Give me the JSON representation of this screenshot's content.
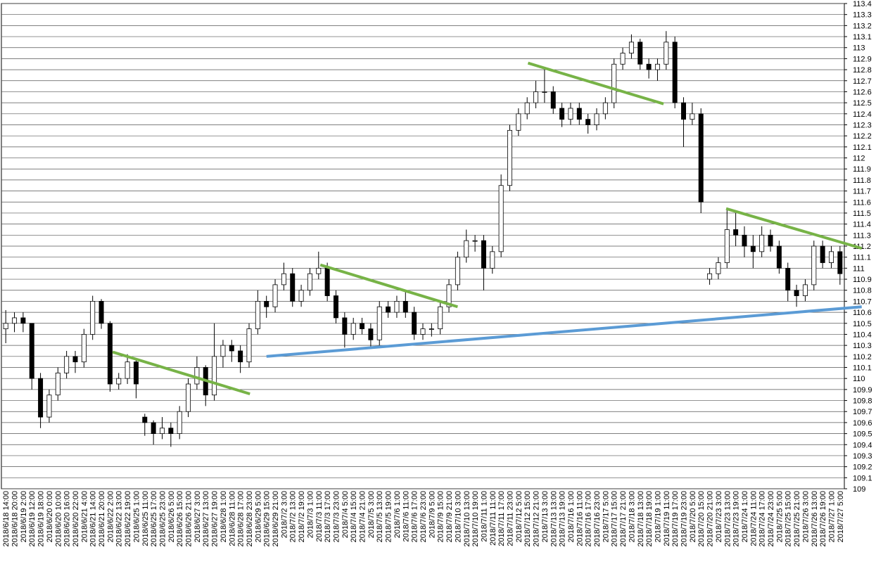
{
  "chart_data": {
    "type": "candlestick",
    "categories": [
      "2018/6/18 14:00",
      "2018/6/18 20:00",
      "2018/6/19 2:00",
      "2018/6/19 12:00",
      "2018/6/19 18:00",
      "2018/6/20 0:00",
      "2018/6/20 10:00",
      "2018/6/20 16:00",
      "2018/6/20 22:00",
      "2018/6/21 4:00",
      "2018/6/21 14:00",
      "2018/6/21 20:00",
      "2018/6/22 2:00",
      "2018/6/22 13:00",
      "2018/6/22 19:00",
      "2018/6/25 1:00",
      "2018/6/25 11:00",
      "2018/6/25 17:00",
      "2018/6/25 23:00",
      "2018/6/26 5:00",
      "2018/6/26 15:00",
      "2018/6/26 21:00",
      "2018/6/27 3:00",
      "2018/6/27 13:00",
      "2018/6/27 19:00",
      "2018/6/28 1:00",
      "2018/6/28 11:00",
      "2018/6/28 17:00",
      "2018/6/28 23:00",
      "2018/6/29 5:00",
      "2018/6/29 15:00",
      "2018/6/29 21:00",
      "2018/7/2 3:00",
      "2018/7/2 13:00",
      "2018/7/2 19:00",
      "2018/7/3 1:00",
      "2018/7/3 11:00",
      "2018/7/3 17:00",
      "2018/7/3 23:00",
      "2018/7/4 5:00",
      "2018/7/4 15:00",
      "2018/7/4 21:00",
      "2018/7/5 3:00",
      "2018/7/5 13:00",
      "2018/7/5 19:00",
      "2018/7/6 1:00",
      "2018/7/6 11:00",
      "2018/7/6 17:00",
      "2018/7/6 23:00",
      "2018/7/9 5:00",
      "2018/7/9 15:00",
      "2018/7/9 21:00",
      "2018/7/10 3:00",
      "2018/7/10 13:00",
      "2018/7/10 19:00",
      "2018/7/11 1:00",
      "2018/7/11 11:00",
      "2018/7/11 17:00",
      "2018/7/11 23:00",
      "2018/7/12 5:00",
      "2018/7/12 15:00",
      "2018/7/12 21:00",
      "2018/7/13 3:00",
      "2018/7/13 13:00",
      "2018/7/13 19:00",
      "2018/7/16 1:00",
      "2018/7/16 11:00",
      "2018/7/16 17:00",
      "2018/7/16 23:00",
      "2018/7/17 5:00",
      "2018/7/17 15:00",
      "2018/7/17 21:00",
      "2018/7/18 3:00",
      "2018/7/18 13:00",
      "2018/7/18 19:00",
      "2018/7/19 1:00",
      "2018/7/19 11:00",
      "2018/7/19 17:00",
      "2018/7/19 23:00",
      "2018/7/20 5:00",
      "2018/7/20 15:00",
      "2018/7/20 21:00",
      "2018/7/23 3:00",
      "2018/7/23 13:00",
      "2018/7/23 19:00",
      "2018/7/24 1:00",
      "2018/7/24 11:00",
      "2018/7/24 17:00",
      "2018/7/24 23:00",
      "2018/7/25 5:00",
      "2018/7/25 15:00",
      "2018/7/25 21:00",
      "2018/7/26 3:00",
      "2018/7/26 13:00",
      "2018/7/26 19:00",
      "2018/7/27 1:00",
      "2018/7/27 5:00"
    ],
    "ohlc": [
      [
        110.45,
        110.62,
        110.32,
        110.5
      ],
      [
        110.5,
        110.6,
        110.42,
        110.55
      ],
      [
        110.55,
        110.6,
        110.42,
        110.5
      ],
      [
        110.5,
        110.5,
        109.9,
        110.0
      ],
      [
        110.0,
        110.05,
        109.55,
        109.65
      ],
      [
        109.65,
        109.9,
        109.6,
        109.85
      ],
      [
        109.85,
        110.1,
        109.8,
        110.05
      ],
      [
        110.05,
        110.25,
        110.0,
        110.2
      ],
      [
        110.2,
        110.25,
        110.05,
        110.15
      ],
      [
        110.15,
        110.45,
        110.1,
        110.4
      ],
      [
        110.4,
        110.75,
        110.35,
        110.7
      ],
      [
        110.7,
        110.72,
        110.45,
        110.5
      ],
      [
        110.5,
        110.52,
        109.88,
        109.95
      ],
      [
        109.95,
        110.05,
        109.9,
        110.0
      ],
      [
        110.0,
        110.22,
        109.95,
        110.15
      ],
      [
        110.15,
        110.18,
        109.82,
        109.95
      ],
      [
        109.65,
        109.68,
        109.48,
        109.6
      ],
      [
        109.6,
        109.62,
        109.4,
        109.5
      ],
      [
        109.5,
        109.65,
        109.45,
        109.55
      ],
      [
        109.55,
        109.6,
        109.38,
        109.5
      ],
      [
        109.5,
        109.75,
        109.45,
        109.7
      ],
      [
        109.7,
        110.0,
        109.65,
        109.95
      ],
      [
        109.95,
        110.2,
        109.9,
        110.1
      ],
      [
        110.1,
        110.12,
        109.75,
        109.85
      ],
      [
        109.85,
        110.5,
        109.8,
        110.2
      ],
      [
        110.2,
        110.35,
        110.1,
        110.3
      ],
      [
        110.3,
        110.35,
        110.15,
        110.25
      ],
      [
        110.25,
        110.3,
        110.05,
        110.15
      ],
      [
        110.15,
        110.5,
        110.1,
        110.45
      ],
      [
        110.45,
        110.8,
        110.4,
        110.7
      ],
      [
        110.7,
        110.75,
        110.55,
        110.65
      ],
      [
        110.65,
        110.9,
        110.6,
        110.85
      ],
      [
        110.85,
        111.05,
        110.8,
        110.95
      ],
      [
        110.95,
        111.0,
        110.65,
        110.7
      ],
      [
        110.7,
        110.85,
        110.65,
        110.8
      ],
      [
        110.8,
        111.0,
        110.75,
        110.95
      ],
      [
        110.95,
        111.15,
        110.9,
        111.0
      ],
      [
        111.0,
        111.05,
        110.7,
        110.75
      ],
      [
        110.75,
        110.8,
        110.5,
        110.55
      ],
      [
        110.55,
        110.6,
        110.28,
        110.4
      ],
      [
        110.4,
        110.55,
        110.35,
        110.5
      ],
      [
        110.5,
        110.55,
        110.4,
        110.45
      ],
      [
        110.45,
        110.5,
        110.28,
        110.35
      ],
      [
        110.35,
        110.7,
        110.3,
        110.65
      ],
      [
        110.65,
        110.7,
        110.55,
        110.6
      ],
      [
        110.6,
        110.75,
        110.55,
        110.7
      ],
      [
        110.7,
        110.8,
        110.55,
        110.6
      ],
      [
        110.6,
        110.65,
        110.35,
        110.4
      ],
      [
        110.4,
        110.5,
        110.35,
        110.45
      ],
      [
        110.45,
        110.5,
        110.38,
        110.45
      ],
      [
        110.45,
        110.7,
        110.4,
        110.65
      ],
      [
        110.65,
        110.9,
        110.6,
        110.85
      ],
      [
        110.85,
        111.15,
        110.8,
        111.1
      ],
      [
        111.1,
        111.35,
        111.05,
        111.25
      ],
      [
        111.25,
        111.3,
        111.15,
        111.25
      ],
      [
        111.25,
        111.3,
        110.8,
        111.0
      ],
      [
        111.0,
        111.2,
        110.95,
        111.15
      ],
      [
        111.15,
        111.85,
        111.1,
        111.75
      ],
      [
        111.75,
        112.3,
        111.7,
        112.25
      ],
      [
        112.25,
        112.45,
        112.2,
        112.4
      ],
      [
        112.4,
        112.55,
        112.35,
        112.5
      ],
      [
        112.5,
        112.7,
        112.45,
        112.6
      ],
      [
        112.6,
        112.8,
        112.5,
        112.6
      ],
      [
        112.6,
        112.65,
        112.4,
        112.45
      ],
      [
        112.45,
        112.5,
        112.28,
        112.35
      ],
      [
        112.35,
        112.5,
        112.3,
        112.45
      ],
      [
        112.45,
        112.5,
        112.3,
        112.35
      ],
      [
        112.35,
        112.4,
        112.22,
        112.3
      ],
      [
        112.3,
        112.45,
        112.25,
        112.4
      ],
      [
        112.4,
        112.55,
        112.35,
        112.5
      ],
      [
        112.5,
        112.9,
        112.45,
        112.85
      ],
      [
        112.85,
        113.0,
        112.8,
        112.95
      ],
      [
        112.95,
        113.12,
        112.9,
        113.05
      ],
      [
        113.05,
        113.08,
        112.8,
        112.85
      ],
      [
        112.85,
        112.9,
        112.72,
        112.8
      ],
      [
        112.8,
        112.9,
        112.7,
        112.85
      ],
      [
        112.85,
        113.15,
        112.8,
        113.05
      ],
      [
        113.05,
        113.1,
        112.45,
        112.5
      ],
      [
        112.5,
        112.55,
        112.1,
        112.35
      ],
      [
        112.35,
        112.5,
        112.3,
        112.4
      ],
      [
        112.4,
        112.45,
        111.5,
        111.6
      ],
      [
        110.9,
        111.0,
        110.85,
        110.95
      ],
      [
        110.95,
        111.1,
        110.9,
        111.05
      ],
      [
        111.05,
        111.55,
        111.0,
        111.35
      ],
      [
        111.35,
        111.5,
        111.2,
        111.3
      ],
      [
        111.3,
        111.38,
        111.1,
        111.2
      ],
      [
        111.2,
        111.3,
        111.0,
        111.15
      ],
      [
        111.15,
        111.38,
        111.1,
        111.3
      ],
      [
        111.3,
        111.35,
        111.15,
        111.2
      ],
      [
        111.2,
        111.25,
        110.95,
        111.0
      ],
      [
        111.0,
        111.05,
        110.7,
        110.8
      ],
      [
        110.8,
        110.85,
        110.65,
        110.75
      ],
      [
        110.75,
        110.9,
        110.7,
        110.85
      ],
      [
        110.85,
        111.25,
        110.8,
        111.2
      ],
      [
        111.2,
        111.25,
        111.0,
        111.05
      ],
      [
        111.05,
        111.2,
        111.0,
        111.15
      ],
      [
        111.15,
        111.2,
        110.85,
        110.95
      ]
    ],
    "up_color": "#ffffff",
    "down_color": "#000000",
    "ylim": [
      109,
      113.4
    ],
    "yticks": [
      109,
      109.1,
      109.2,
      109.3,
      109.4,
      109.5,
      109.6,
      109.7,
      109.8,
      109.9,
      110,
      110.1,
      110.2,
      110.3,
      110.4,
      110.5,
      110.6,
      110.7,
      110.8,
      110.9,
      111,
      111.1,
      111.2,
      111.3,
      111.4,
      111.5,
      111.6,
      111.7,
      111.8,
      111.9,
      112,
      112.1,
      112.2,
      112.3,
      112.4,
      112.5,
      112.6,
      112.7,
      112.8,
      112.9,
      113,
      113.1,
      113.2,
      113.3,
      113.4
    ],
    "grid": true,
    "trendlines": [
      {
        "color": "#77b347",
        "x": [
          12.3,
          28.1
        ],
        "y": [
          110.24,
          109.86
        ]
      },
      {
        "color": "#5b9bd5",
        "x": [
          30.0,
          98.5
        ],
        "y": [
          110.2,
          110.65
        ]
      },
      {
        "color": "#77b347",
        "x": [
          36.2,
          52.0
        ],
        "y": [
          111.03,
          110.65
        ]
      },
      {
        "color": "#77b347",
        "x": [
          60.1,
          75.7
        ],
        "y": [
          112.86,
          112.49
        ]
      },
      {
        "color": "#77b347",
        "x": [
          82.9,
          98.5
        ],
        "y": [
          111.54,
          111.18
        ]
      }
    ]
  }
}
